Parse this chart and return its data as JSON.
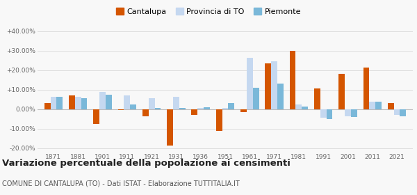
{
  "years": [
    1871,
    1881,
    1901,
    1911,
    1921,
    1931,
    1936,
    1951,
    1961,
    1971,
    1981,
    1991,
    2001,
    2011,
    2021
  ],
  "cantalupa": [
    3.0,
    7.0,
    -7.5,
    -0.5,
    -3.5,
    -18.5,
    -3.0,
    -11.0,
    -1.5,
    23.5,
    30.0,
    10.5,
    18.0,
    21.5,
    3.0
  ],
  "provincia_to": [
    6.5,
    6.5,
    9.0,
    7.0,
    5.5,
    6.5,
    0.5,
    0.5,
    26.5,
    24.5,
    2.5,
    -4.5,
    -3.5,
    4.0,
    -3.0
  ],
  "piemonte": [
    6.5,
    5.5,
    7.5,
    2.5,
    0.5,
    0.5,
    1.0,
    3.0,
    11.0,
    13.0,
    1.5,
    -5.0,
    -4.0,
    4.0,
    -3.5
  ],
  "cantalupa_color": "#d45500",
  "provincia_color": "#c5d8f0",
  "piemonte_color": "#7ab8d9",
  "title": "Variazione percentuale della popolazione ai censimenti",
  "subtitle": "COMUNE DI CANTALUPA (TO) - Dati ISTAT - Elaborazione TUTTITALIA.IT",
  "legend_labels": [
    "Cantalupa",
    "Provincia di TO",
    "Piemonte"
  ],
  "ylim": [
    -22,
    42
  ],
  "yticks": [
    -20,
    -10,
    0,
    10,
    20,
    30,
    40
  ],
  "ytick_labels": [
    "-20.00%",
    "-10.00%",
    "0.00%",
    "+10.00%",
    "+20.00%",
    "+30.00%",
    "+40.00%"
  ],
  "background_color": "#f8f8f8",
  "grid_color": "#dddddd",
  "title_fontsize": 9.5,
  "subtitle_fontsize": 7.0,
  "tick_fontsize": 6.5,
  "legend_fontsize": 8.0
}
